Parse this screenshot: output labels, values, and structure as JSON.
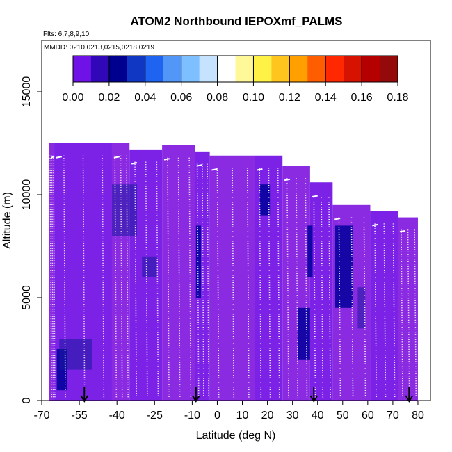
{
  "chart_data": {
    "type": "heatmap",
    "title": "ATOM2 Northbound IEPOXmf_PALMS",
    "annotations": [
      "Flts: 6,7,8,9,10",
      "MMDD: 0210,0213,0215,0218,0219"
    ],
    "xlabel": "Latitude (deg N)",
    "ylabel": "Altitude (m)",
    "xlim": [
      -70,
      85
    ],
    "ylim": [
      0,
      17500
    ],
    "x_ticks": [
      -70,
      -55,
      -40,
      -25,
      -10,
      0,
      10,
      20,
      30,
      40,
      50,
      60,
      70,
      80
    ],
    "y_ticks": [
      0,
      5000,
      10000,
      15000
    ],
    "colorbar": {
      "range": [
        0,
        0.18
      ],
      "ticks": [
        "0.00",
        "0.02",
        "0.04",
        "0.06",
        "0.08",
        "0.10",
        "0.12",
        "0.14",
        "0.16",
        "0.18"
      ],
      "stops": [
        "#6e12e8",
        "#00008f",
        "#1e64f0",
        "#7ec0ff",
        "#ffffff",
        "#fff246",
        "#ffa000",
        "#ff2800",
        "#b40000",
        "#7a1010"
      ]
    },
    "colors": {
      "background": "#8a2be2",
      "low": "#7b22e6",
      "medium": "#1a1a9e",
      "high": "#00009a",
      "track": "#ffffff"
    },
    "arrow_latitudes": [
      -53,
      -8.5,
      38.5,
      76.5
    ],
    "columns": [
      {
        "lat": [
          -67,
          -65
        ],
        "top": 12500
      },
      {
        "lat": [
          -65,
          -42
        ],
        "top": 12500
      },
      {
        "lat": [
          -42,
          -35
        ],
        "top": 12500
      },
      {
        "lat": [
          -35,
          -22
        ],
        "top": 12200
      },
      {
        "lat": [
          -22,
          -9
        ],
        "top": 12400
      },
      {
        "lat": [
          -9,
          -3
        ],
        "top": 12100
      },
      {
        "lat": [
          -3,
          15
        ],
        "top": 11900
      },
      {
        "lat": [
          15,
          26
        ],
        "top": 11900
      },
      {
        "lat": [
          26,
          37
        ],
        "top": 11400
      },
      {
        "lat": [
          37,
          46
        ],
        "top": 10600
      },
      {
        "lat": [
          46,
          61
        ],
        "top": 9500
      },
      {
        "lat": [
          61,
          72
        ],
        "top": 9200
      },
      {
        "lat": [
          72,
          80
        ],
        "top": 8900
      }
    ],
    "regions": [
      {
        "lat": [
          -64,
          -60
        ],
        "alt": [
          500,
          2500
        ],
        "level": "high"
      },
      {
        "lat": [
          -63,
          -50
        ],
        "alt": [
          1500,
          3000
        ],
        "level": "medium"
      },
      {
        "lat": [
          -42,
          -32
        ],
        "alt": [
          8000,
          10500
        ],
        "level": "medium"
      },
      {
        "lat": [
          -30,
          -24
        ],
        "alt": [
          6000,
          7000
        ],
        "level": "medium"
      },
      {
        "lat": [
          -8.5,
          -6.5
        ],
        "alt": [
          5000,
          8500
        ],
        "level": "high"
      },
      {
        "lat": [
          17,
          21
        ],
        "alt": [
          9000,
          10500
        ],
        "level": "high"
      },
      {
        "lat": [
          36,
          38
        ],
        "alt": [
          6000,
          8500
        ],
        "level": "high"
      },
      {
        "lat": [
          32,
          37
        ],
        "alt": [
          2000,
          4500
        ],
        "level": "high"
      },
      {
        "lat": [
          47,
          54
        ],
        "alt": [
          4500,
          8500
        ],
        "level": "high"
      },
      {
        "lat": [
          56,
          59
        ],
        "alt": [
          3500,
          5500
        ],
        "level": "medium"
      }
    ]
  }
}
